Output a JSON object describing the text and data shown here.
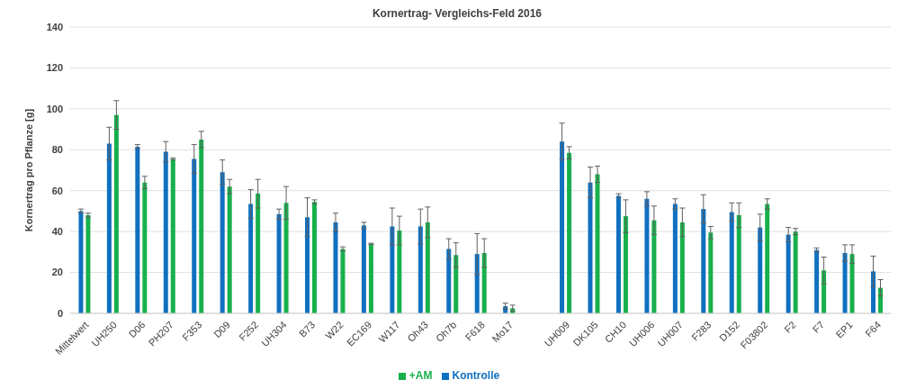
{
  "chart_data": {
    "type": "bar",
    "title": "Kornertrag- Vergleichs-Feld 2016",
    "ylabel": "Kornertrag pro Pflanze [g]",
    "categories": [
      "Mittelwert",
      "UH250",
      "D06",
      "PH207",
      "F353",
      "D09",
      "F252",
      "UH304",
      "B73",
      "W22",
      "EC169",
      "W117",
      "Oh43",
      "Oh7b",
      "F618",
      "Mo17",
      null,
      "UH009",
      "DK105",
      "CH10",
      "UH006",
      "UH007",
      "F283",
      "D152",
      "F03802",
      "F2",
      "F7",
      "EP1",
      "F64"
    ],
    "series": [
      {
        "name": "Kontrolle",
        "color": "#1070c0",
        "values": [
          50,
          83,
          81.5,
          79,
          75.5,
          69,
          53.5,
          48.5,
          47,
          44.5,
          43,
          42.5,
          42.5,
          31.5,
          29,
          3.5,
          null,
          84,
          64,
          57.5,
          56,
          53.5,
          51,
          49.5,
          42,
          38.5,
          31,
          29.5,
          20.5
        ],
        "errors": [
          1,
          8,
          1,
          5,
          7,
          6,
          7,
          2.5,
          9.5,
          4.5,
          1.5,
          9,
          8.5,
          5,
          10,
          1.5,
          null,
          9,
          7.5,
          1,
          3.5,
          2.5,
          7,
          4.5,
          6.5,
          3.5,
          1,
          4,
          7.5
        ]
      },
      {
        "name": "+AM",
        "color": "#18b04c",
        "values": [
          48,
          97,
          64,
          75.5,
          85,
          62,
          58.5,
          54,
          54.5,
          31.5,
          34,
          40.5,
          44.5,
          28.5,
          29.5,
          2.5,
          null,
          78.5,
          68,
          47.5,
          45.5,
          44.5,
          39.5,
          48,
          53.5,
          40,
          21,
          29,
          12.5
        ],
        "errors": [
          1,
          7,
          3,
          0.5,
          4,
          3.5,
          7,
          8,
          1,
          1,
          0.3,
          7,
          7.5,
          6,
          7,
          1.5,
          null,
          3,
          4,
          8,
          7,
          7,
          3,
          6,
          2.5,
          1.5,
          6.5,
          4.5,
          4
        ]
      }
    ],
    "ylim": [
      0,
      140
    ],
    "yticks": [
      0,
      20,
      40,
      60,
      80,
      100,
      120,
      140
    ],
    "grid": "y",
    "legend": "bottom"
  }
}
